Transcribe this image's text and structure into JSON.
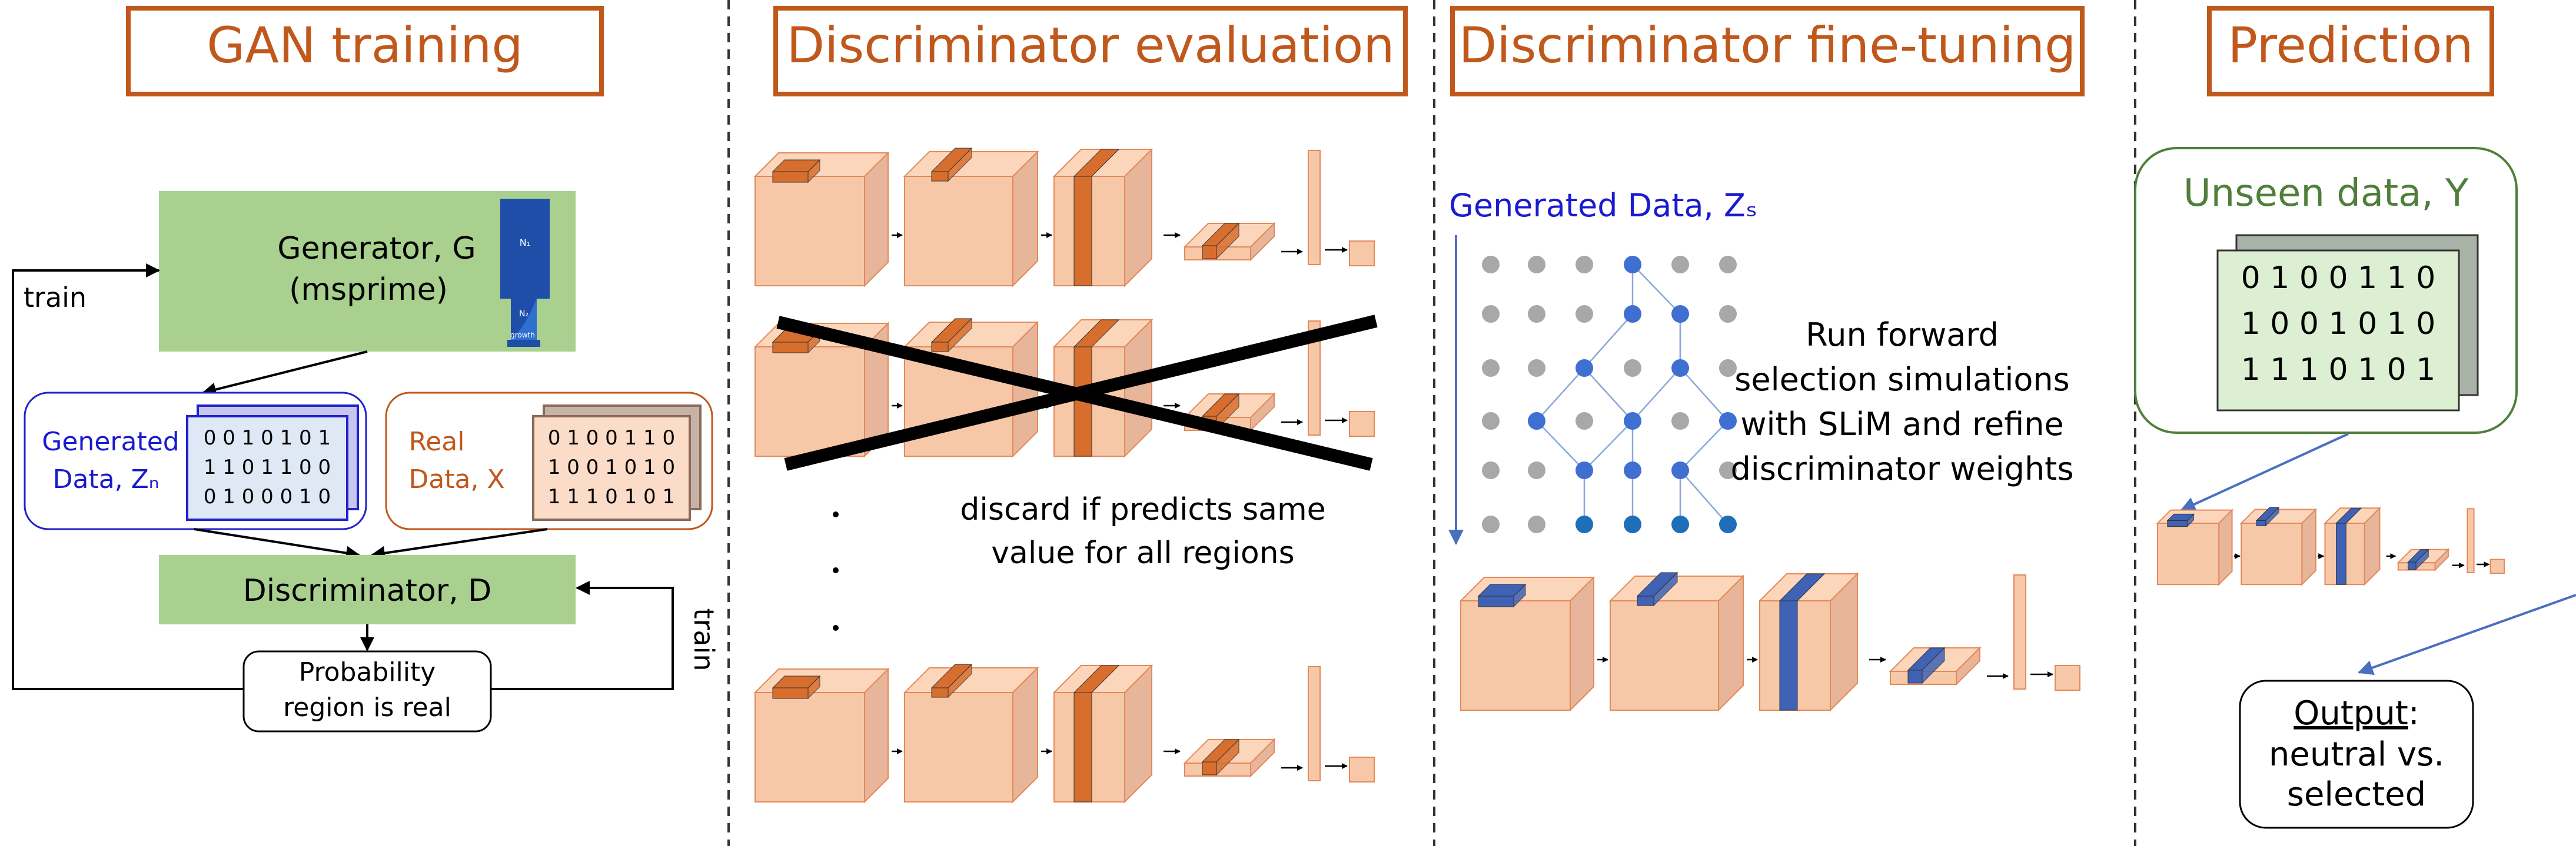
{
  "colors": {
    "title_orange": "#c0581c",
    "green_fill": "#a9d08e",
    "peach": "#f6c8a8",
    "peach_edge": "#e4895a",
    "dark_orange": "#d86e2e",
    "blue_text": "#1a1ad0",
    "blue_accent": "#3f62b5",
    "gray_node": "#a8a8a8",
    "dark_green": "#4f7f3a",
    "black": "#000000"
  },
  "panels": {
    "gan": {
      "title": "GAN training",
      "generator_line1": "Generator, G",
      "generator_line2": "(msprime)",
      "generated_label_line1": "Generated",
      "generated_label_line2": "Data, Zₙ",
      "generated_matrix": [
        "0 0 1 0 1 0 1",
        "1 1 0 1 1 0 0",
        "0 1 0 0 0 1 0"
      ],
      "real_label_line1": "Real",
      "real_label_line2": "Data, X",
      "real_matrix": [
        "0 1 0 0 1 1 0",
        "1 0 0 1 0 1 0",
        "1 1 1 0 1 0 1"
      ],
      "discriminator": "Discriminator, D",
      "prob_line1": "Probability",
      "prob_line2": "region is real",
      "train_left": "train",
      "train_right": "train",
      "icon_n1": "N₁",
      "icon_n2": "N₂",
      "icon_growth": "growth"
    },
    "eval": {
      "title": "Discriminator evaluation",
      "discard_line1": "discard if predicts same",
      "discard_line2": "value for all regions"
    },
    "finetune": {
      "title": "Discriminator fine-tuning",
      "generated_label": "Generated Data, Zₛ",
      "run_lines": [
        "Run forward",
        "selection simulations",
        "with SLiM and refine",
        "discriminator weights"
      ]
    },
    "predict": {
      "title": "Prediction",
      "unseen_label": "Unseen data, Y",
      "unseen_matrix": [
        "0 1 0 0 1 1 0",
        "1 0 0 1 0 1 0",
        "1 1 1 0 1 0 1"
      ],
      "output_word": "Output",
      "output_colon": ":",
      "output_line2": "neutral vs.",
      "output_line3": "selected"
    }
  }
}
